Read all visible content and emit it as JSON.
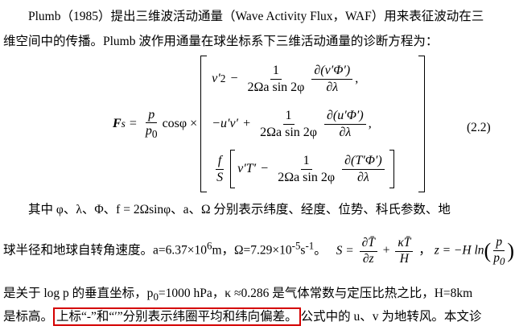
{
  "paragraph_1": {
    "lines": [
      "Plumb（1985）提出三维波活动通量（Wave Activity Flux，WAF）用来表征波动在三",
      "维空间中的传播。Plumb 波作用通量在球坐标系下三维活动通量的诊断方程为："
    ]
  },
  "equation": {
    "lhs": "F",
    "lhs_sub": "s",
    "equals": "=",
    "factor_num": "p",
    "factor_den": "p",
    "factor_den_sub": "0",
    "factor": "cosφ ×",
    "rows": [
      {
        "term": "v′",
        "term_sup": "2",
        "op": "−",
        "coef_num": "1",
        "coef_den": "2Ωa sin 2φ",
        "d_num": "∂(v′Φ′)",
        "d_den": "∂λ",
        "end": ","
      },
      {
        "term": "−u′v′",
        "op": "+",
        "coef_num": "1",
        "coef_den": "2Ωa sin 2φ",
        "d_num": "∂(u′Φ′)",
        "d_den": "∂λ",
        "end": ","
      },
      {
        "prefix_num": "f",
        "prefix_den": "S",
        "term": "v′T′",
        "op": "−",
        "coef_num": "1",
        "coef_den": "2Ωa sin 2φ",
        "d_num": "∂(T′Φ′)",
        "d_den": "∂λ"
      }
    ],
    "number": "(2.2)"
  },
  "paragraph_2": {
    "line_1": "其中 φ、λ、Φ、f = 2Ωsinφ、a、Ω 分别表示纬度、经度、位势、科氏参数、地",
    "line_2": {
      "text_1": "球半径和地球自转角速度。a=6.37×10",
      "exp_1": "6",
      "text_2": "m，Ω=7.29×10",
      "exp_2": "-5",
      "text_3": "s",
      "exp_3": "-1",
      "text_4": "。",
      "s_lhs": "S =",
      "s_frac_1_num": "∂T̄",
      "s_frac_1_den": "∂z",
      "s_plus": "+",
      "s_frac_2_num": "κT̄",
      "s_frac_2_den": "H",
      "comma": "，",
      "z_lhs": "z = −H ln",
      "z_frac_num": "p",
      "z_frac_den": "p",
      "z_frac_den_sub": "0"
    },
    "line_3": {
      "text_1": "是关于 log p 的垂直坐标，p",
      "sub_1": "0",
      "text_2": "=1000 hPa，κ ≈0.286 是气体常数与定压比热之比，H=8km"
    },
    "line_4": {
      "text_1": "是标高。",
      "highlight": "上标“-”和“′”分别表示纬圈平均和纬向偏差。",
      "text_2": "公式中的 u、v 为地转风。本文诊"
    }
  }
}
